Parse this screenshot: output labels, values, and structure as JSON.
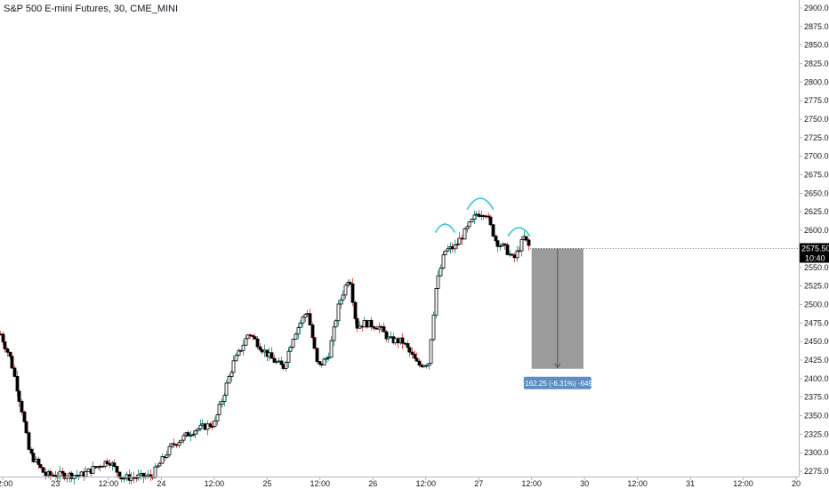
{
  "chart_data": {
    "type": "candlestick",
    "title": "S&P 500 E-mini Futures, 30, CME_MINI",
    "y_axis": {
      "ticks": [
        "2900.00",
        "2875.00",
        "2850.00",
        "2825.00",
        "2800.00",
        "2775.00",
        "2750.00",
        "2725.00",
        "2700.00",
        "2675.00",
        "2650.00",
        "2625.00",
        "2600.00",
        "2575.00",
        "2550.00",
        "2525.00",
        "2500.00",
        "2475.00",
        "2450.00",
        "2425.00",
        "2400.00",
        "2375.00",
        "2350.00",
        "2325.00",
        "2300.00",
        "2275.00"
      ],
      "ylim": [
        2265,
        2910
      ]
    },
    "x_axis": {
      "labels": [
        {
          "text": "12:00",
          "x": -1.0
        },
        {
          "text": "23",
          "x": 0
        },
        {
          "text": "12:00",
          "x": 1.0
        },
        {
          "text": "24",
          "x": 2.0
        },
        {
          "text": "12:00",
          "x": 3.0
        },
        {
          "text": "25",
          "x": 4.0
        },
        {
          "text": "12:00",
          "x": 5.0
        },
        {
          "text": "26",
          "x": 6.0
        },
        {
          "text": "12:00",
          "x": 7.0
        },
        {
          "text": "27",
          "x": 8.0
        },
        {
          "text": "12:00",
          "x": 9.0
        },
        {
          "text": "30",
          "x": 10.0
        },
        {
          "text": "12:00",
          "x": 11.0
        },
        {
          "text": "31",
          "x": 12.0
        },
        {
          "text": "12:00",
          "x": 13.0
        },
        {
          "text": "20",
          "x": 14.0
        }
      ],
      "xlim": [
        -1.05,
        14.05
      ]
    },
    "price_tag": {
      "price": 2575.5,
      "label": "2575.50",
      "countdown": "10:40"
    },
    "measure": {
      "x_start": 9.0,
      "x_end": 9.98,
      "price_top": 2575.5,
      "price_bottom": 2413.25,
      "label": "-162.25 (-6.31%) -649"
    },
    "anchors": [
      {
        "x": -1.05,
        "price": 2460
      },
      {
        "x": -0.85,
        "price": 2425
      },
      {
        "x": -0.65,
        "price": 2360
      },
      {
        "x": -0.5,
        "price": 2300
      },
      {
        "x": -0.2,
        "price": 2270
      },
      {
        "x": 0.5,
        "price": 2270
      },
      {
        "x": 1.0,
        "price": 2290
      },
      {
        "x": 1.25,
        "price": 2266
      },
      {
        "x": 1.8,
        "price": 2268
      },
      {
        "x": 2.2,
        "price": 2310
      },
      {
        "x": 2.6,
        "price": 2330
      },
      {
        "x": 3.0,
        "price": 2340
      },
      {
        "x": 3.35,
        "price": 2420
      },
      {
        "x": 3.65,
        "price": 2462
      },
      {
        "x": 3.9,
        "price": 2440
      },
      {
        "x": 4.1,
        "price": 2425
      },
      {
        "x": 4.3,
        "price": 2415
      },
      {
        "x": 4.5,
        "price": 2460
      },
      {
        "x": 4.75,
        "price": 2492
      },
      {
        "x": 4.95,
        "price": 2415
      },
      {
        "x": 5.15,
        "price": 2430
      },
      {
        "x": 5.35,
        "price": 2500
      },
      {
        "x": 5.55,
        "price": 2540
      },
      {
        "x": 5.68,
        "price": 2470
      },
      {
        "x": 5.85,
        "price": 2475
      },
      {
        "x": 6.1,
        "price": 2470
      },
      {
        "x": 6.3,
        "price": 2452
      },
      {
        "x": 6.55,
        "price": 2450
      },
      {
        "x": 6.85,
        "price": 2418
      },
      {
        "x": 7.05,
        "price": 2422
      },
      {
        "x": 7.18,
        "price": 2520
      },
      {
        "x": 7.35,
        "price": 2572
      },
      {
        "x": 7.55,
        "price": 2578
      },
      {
        "x": 7.75,
        "price": 2600
      },
      {
        "x": 7.95,
        "price": 2622
      },
      {
        "x": 8.12,
        "price": 2625
      },
      {
        "x": 8.32,
        "price": 2585
      },
      {
        "x": 8.5,
        "price": 2575
      },
      {
        "x": 8.65,
        "price": 2560
      },
      {
        "x": 8.85,
        "price": 2590
      },
      {
        "x": 8.97,
        "price": 2575
      }
    ],
    "arcs": [
      {
        "x1": 7.18,
        "x2": 7.55,
        "price": 2597,
        "height": 12
      },
      {
        "x1": 7.78,
        "x2": 8.28,
        "price": 2628,
        "height": 16
      },
      {
        "x1": 8.55,
        "x2": 8.97,
        "price": 2592,
        "height": 12
      }
    ],
    "colors": {
      "up": "#000000",
      "down": "#000000",
      "wick_up": "#26a69a",
      "wick_down": "#ef5350",
      "body_up": "#ffffff",
      "body_down": "#000000",
      "arc": "#26c6da",
      "measure_fill": "#8a8a8a",
      "label_bg": "#5b8ec4",
      "price_tag": "#000000"
    }
  }
}
